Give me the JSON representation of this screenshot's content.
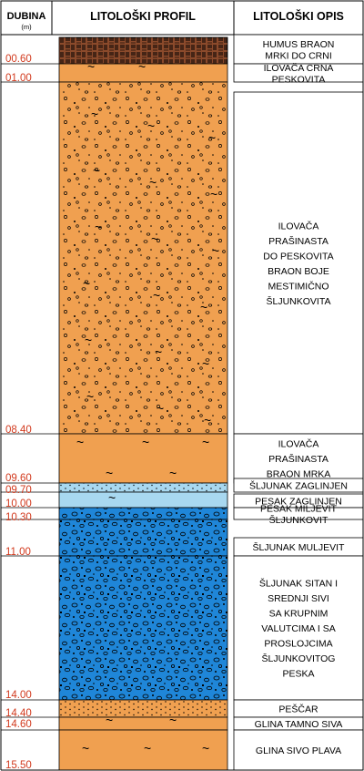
{
  "header": {
    "depth_title": "DUBINA",
    "depth_unit": "(m)",
    "profile_title": "LITOLOŠKI PROFIL",
    "description_title": "LITOLOŠKI OPIS"
  },
  "depth_labels": [
    "00.60",
    "01.00",
    "08.40",
    "09.60",
    "09.70",
    "10.00",
    "10.30",
    "11.00",
    "14.00",
    "14.40",
    "14.60",
    "15.50"
  ],
  "layers": [
    {
      "pattern": "humus",
      "color": "#8b4a2b",
      "description": [
        "HUMUS BRAON",
        "MRKI DO CRNI"
      ]
    },
    {
      "pattern": "clay",
      "color": "#f0a050",
      "description": [
        "ILOVAČA CRNA",
        "PESKOVITA"
      ]
    },
    {
      "pattern": "gravelly-clay",
      "color": "#f0a050",
      "description": [
        "ILOVAČA",
        "PRAŠINASTA",
        "DO PESKOVITA",
        "BRAON BOJE",
        "MESTIMIČNO",
        "ŠLJUNKOVITA"
      ]
    },
    {
      "pattern": "clay",
      "color": "#f0a050",
      "description": [
        "ILOVAČA",
        "PRAŠINASTA",
        "BRAON MRKA"
      ]
    },
    {
      "pattern": "sand",
      "color": "#a8d8f0",
      "description": [
        "ŠLJUNAK ZAGLINJEN"
      ]
    },
    {
      "pattern": "clay",
      "color": "#a8d8f0",
      "description": [
        "PESAK ZAGLINJEN"
      ]
    },
    {
      "pattern": "gravel",
      "color": "#1f86d8",
      "description": [
        "PESAK MILJEVIT",
        "ŠLJUNKOVIT"
      ]
    },
    {
      "pattern": "gravel",
      "color": "#1f86d8",
      "description": [
        "ŠLJUNAK MULJEVIT"
      ]
    },
    {
      "pattern": "gravel",
      "color": "#1f86d8",
      "description": [
        "ŠLJUNAK SITAN I",
        "SREDNJI SIVI",
        "SA KRUPNIM",
        "VALUTCIMA I SA",
        "PROSLOJCIMA",
        "ŠLJUNKOVITOG",
        "PESKA"
      ]
    },
    {
      "pattern": "sand",
      "color": "#f0a050",
      "description": [
        "PEŠČAR"
      ]
    },
    {
      "pattern": "clay",
      "color": "#f0a050",
      "description": [
        "GLINA TAMNO SIVA"
      ]
    },
    {
      "pattern": "clay",
      "color": "#f0a050",
      "description": [
        "GLINA SIVO PLAVA"
      ]
    }
  ]
}
